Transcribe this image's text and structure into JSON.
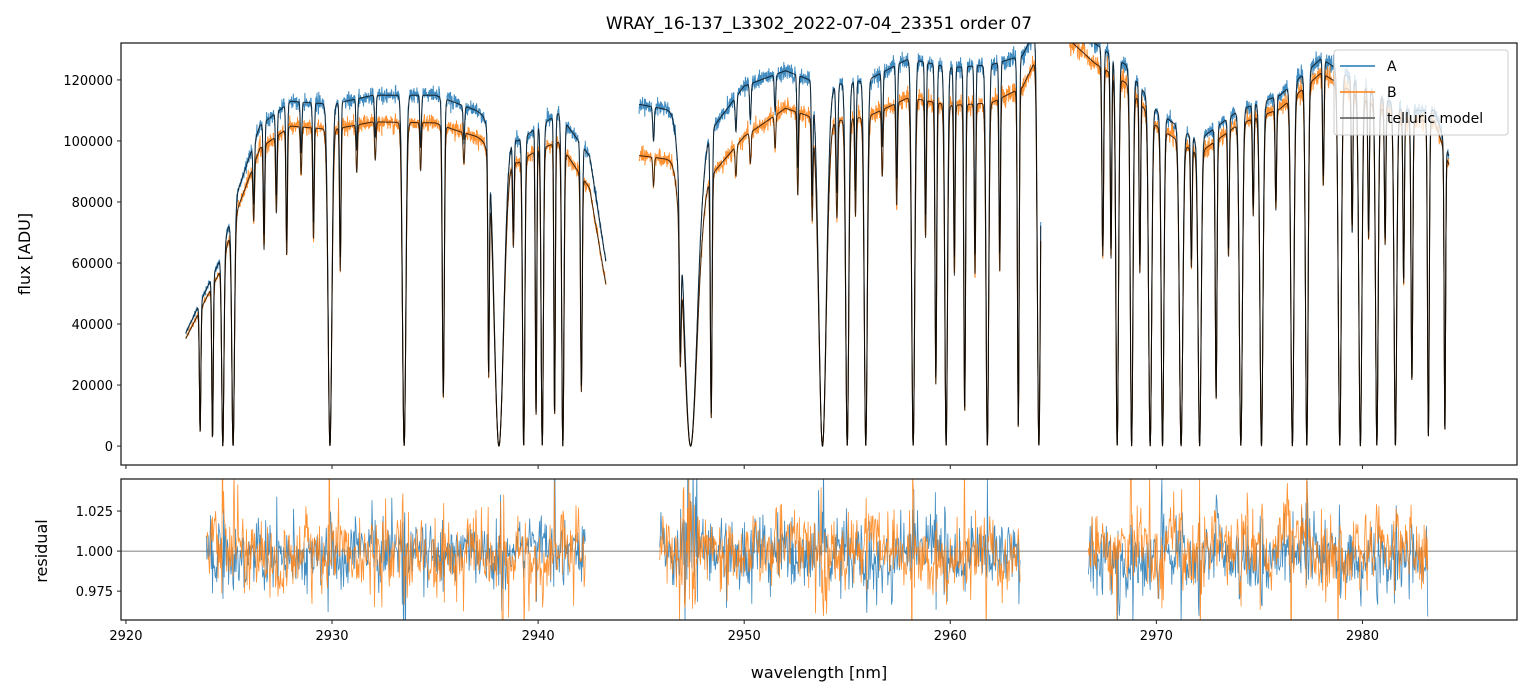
{
  "chart_data": {
    "type": "line",
    "title": "WRAY_16-137_L3302_2022-07-04_23351  order 07",
    "xlabel": "wavelength [nm]",
    "colors": {
      "A": "#1f77b4",
      "B": "#ff7f0e",
      "model": "#000000",
      "axes": "#222222"
    },
    "legend": {
      "placement": "top-right",
      "entries": [
        "A",
        "B",
        "telluric model"
      ]
    },
    "xlim": [
      2919.76,
      2987.5
    ],
    "xticks": [
      2920,
      2930,
      2940,
      2950,
      2960,
      2970,
      2980
    ],
    "xtick_labels": [
      "2920",
      "2930",
      "2940",
      "2950",
      "2960",
      "2970",
      "2980"
    ],
    "top_panel": {
      "ylabel": "flux [ADU]",
      "ylim": [
        -6200,
        132100
      ],
      "yticks": [
        0,
        20000,
        40000,
        60000,
        80000,
        100000,
        120000
      ],
      "ytick_labels": [
        "0",
        "20000",
        "40000",
        "60000",
        "80000",
        "100000",
        "120000"
      ],
      "segments": [
        [
          2922.9,
          2943.3
        ],
        [
          2944.9,
          2964.4
        ],
        [
          2965.8,
          2984.2
        ]
      ],
      "continuum_A": [
        [
          2922.9,
          37000
        ],
        [
          2924.5,
          60000
        ],
        [
          2925.5,
          85000
        ],
        [
          2926.5,
          105000
        ],
        [
          2928,
          113000
        ],
        [
          2930,
          112000
        ],
        [
          2932,
          115000
        ],
        [
          2935,
          115000
        ],
        [
          2937,
          110000
        ],
        [
          2939,
          100000
        ],
        [
          2941,
          109000
        ],
        [
          2942.5,
          95000
        ],
        [
          2943.3,
          60000
        ],
        [
          2944.9,
          112000
        ],
        [
          2946.5,
          110000
        ],
        [
          2948,
          100000
        ],
        [
          2950,
          118000
        ],
        [
          2952,
          123000
        ],
        [
          2954,
          118000
        ],
        [
          2956,
          120000
        ],
        [
          2958,
          127000
        ],
        [
          2960,
          124000
        ],
        [
          2962,
          125000
        ],
        [
          2963.5,
          128000
        ],
        [
          2964.4,
          140000
        ],
        [
          2965.8,
          140000
        ],
        [
          2967,
          132000
        ],
        [
          2968.5,
          125000
        ],
        [
          2970,
          110000
        ],
        [
          2972,
          100000
        ],
        [
          2974,
          110000
        ],
        [
          2976,
          115000
        ],
        [
          2978,
          127000
        ],
        [
          2980,
          118000
        ],
        [
          2982,
          110000
        ],
        [
          2983.5,
          110000
        ],
        [
          2984.2,
          95000
        ]
      ],
      "ratio_B_to_A": [
        [
          2922.9,
          0.95
        ],
        [
          2926,
          0.93
        ],
        [
          2936,
          0.92
        ],
        [
          2940,
          0.93
        ],
        [
          2944.9,
          0.85
        ],
        [
          2950,
          0.86
        ],
        [
          2952,
          0.9
        ],
        [
          2962,
          0.9
        ],
        [
          2966,
          0.95
        ],
        [
          2984.2,
          0.97
        ]
      ],
      "absorption_lines": [
        [
          2923.6,
          0.9,
          0.05
        ],
        [
          2924.2,
          0.95,
          0.05
        ],
        [
          2924.7,
          1,
          0.06
        ],
        [
          2925.2,
          1,
          0.07
        ],
        [
          2926.2,
          0.2,
          0.05
        ],
        [
          2926.7,
          0.35,
          0.05
        ],
        [
          2927.3,
          0.25,
          0.05
        ],
        [
          2927.8,
          0.4,
          0.05
        ],
        [
          2928.5,
          0.15,
          0.05
        ],
        [
          2929.1,
          0.35,
          0.05
        ],
        [
          2929.9,
          1,
          0.1
        ],
        [
          2930.4,
          0.45,
          0.05
        ],
        [
          2931.2,
          0.15,
          0.05
        ],
        [
          2932.1,
          0.12,
          0.05
        ],
        [
          2933.5,
          1,
          0.09
        ],
        [
          2934.3,
          0.15,
          0.05
        ],
        [
          2935.4,
          0.85,
          0.07
        ],
        [
          2936.4,
          0.1,
          0.05
        ],
        [
          2937.6,
          0.75,
          0.05
        ],
        [
          2938.1,
          1,
          0.25
        ],
        [
          2938.8,
          0.3,
          0.05
        ],
        [
          2939.3,
          1,
          0.06
        ],
        [
          2939.9,
          0.9,
          0.05
        ],
        [
          2940.2,
          1,
          0.06
        ],
        [
          2940.8,
          0.9,
          0.05
        ],
        [
          2941.2,
          1,
          0.06
        ],
        [
          2942.1,
          0.8,
          0.06
        ],
        [
          2945.6,
          0.1,
          0.05
        ],
        [
          2946.9,
          0.6,
          0.06
        ],
        [
          2947.4,
          1,
          0.35
        ],
        [
          2948.4,
          0.9,
          0.06
        ],
        [
          2949.6,
          0.1,
          0.05
        ],
        [
          2950.3,
          0.1,
          0.05
        ],
        [
          2951.5,
          0.1,
          0.05
        ],
        [
          2952.6,
          0.25,
          0.05
        ],
        [
          2953.3,
          0.3,
          0.05
        ],
        [
          2953.8,
          1,
          0.2
        ],
        [
          2954.5,
          0.3,
          0.06
        ],
        [
          2955.0,
          1,
          0.08
        ],
        [
          2955.4,
          0.3,
          0.05
        ],
        [
          2955.9,
          1,
          0.08
        ],
        [
          2956.7,
          0.2,
          0.05
        ],
        [
          2957.4,
          0.3,
          0.05
        ],
        [
          2958.2,
          1,
          0.08
        ],
        [
          2958.8,
          0.4,
          0.05
        ],
        [
          2959.3,
          0.82,
          0.06
        ],
        [
          2959.8,
          1,
          0.07
        ],
        [
          2960.2,
          0.5,
          0.05
        ],
        [
          2960.7,
          0.9,
          0.06
        ],
        [
          2961.2,
          0.5,
          0.05
        ],
        [
          2961.8,
          1,
          0.07
        ],
        [
          2962.4,
          0.5,
          0.05
        ],
        [
          2963.3,
          0.95,
          0.06
        ],
        [
          2964.3,
          1,
          0.08
        ],
        [
          2967.4,
          0.5,
          0.06
        ],
        [
          2967.8,
          0.5,
          0.05
        ],
        [
          2968.1,
          1,
          0.07
        ],
        [
          2968.8,
          1,
          0.07
        ],
        [
          2969.2,
          0.5,
          0.05
        ],
        [
          2969.7,
          1,
          0.08
        ],
        [
          2970.3,
          1,
          0.07
        ],
        [
          2971.2,
          1,
          0.09
        ],
        [
          2971.7,
          0.4,
          0.05
        ],
        [
          2972.1,
          1,
          0.08
        ],
        [
          2972.9,
          0.85,
          0.06
        ],
        [
          2973.5,
          0.4,
          0.05
        ],
        [
          2974.1,
          1,
          0.08
        ],
        [
          2974.7,
          0.3,
          0.05
        ],
        [
          2975.1,
          1,
          0.08
        ],
        [
          2975.8,
          0.3,
          0.05
        ],
        [
          2976.6,
          1,
          0.08
        ],
        [
          2977.3,
          1,
          0.07
        ],
        [
          2978.1,
          0.3,
          0.05
        ],
        [
          2978.9,
          1,
          0.08
        ],
        [
          2979.5,
          0.4,
          0.05
        ],
        [
          2979.9,
          1,
          0.08
        ],
        [
          2980.3,
          0.4,
          0.05
        ],
        [
          2980.7,
          1,
          0.07
        ],
        [
          2981.1,
          0.4,
          0.05
        ],
        [
          2981.6,
          1,
          0.07
        ],
        [
          2982.0,
          0.5,
          0.05
        ],
        [
          2982.4,
          0.8,
          0.06
        ],
        [
          2983.2,
          0.97,
          0.06
        ],
        [
          2984.0,
          0.95,
          0.05
        ]
      ]
    },
    "bottom_panel": {
      "ylabel": "residual",
      "ylim": [
        0.957,
        1.045
      ],
      "yticks": [
        0.975,
        1.0,
        1.025
      ],
      "ytick_labels": [
        "0.975",
        "1.000",
        "1.025"
      ],
      "reference_line": 1.0,
      "segments": [
        [
          2923.9,
          2942.3
        ],
        [
          2945.9,
          2963.4
        ],
        [
          2966.7,
          2983.2
        ]
      ],
      "noise_amplitude": {
        "A": 0.014,
        "B": 0.016
      }
    }
  }
}
